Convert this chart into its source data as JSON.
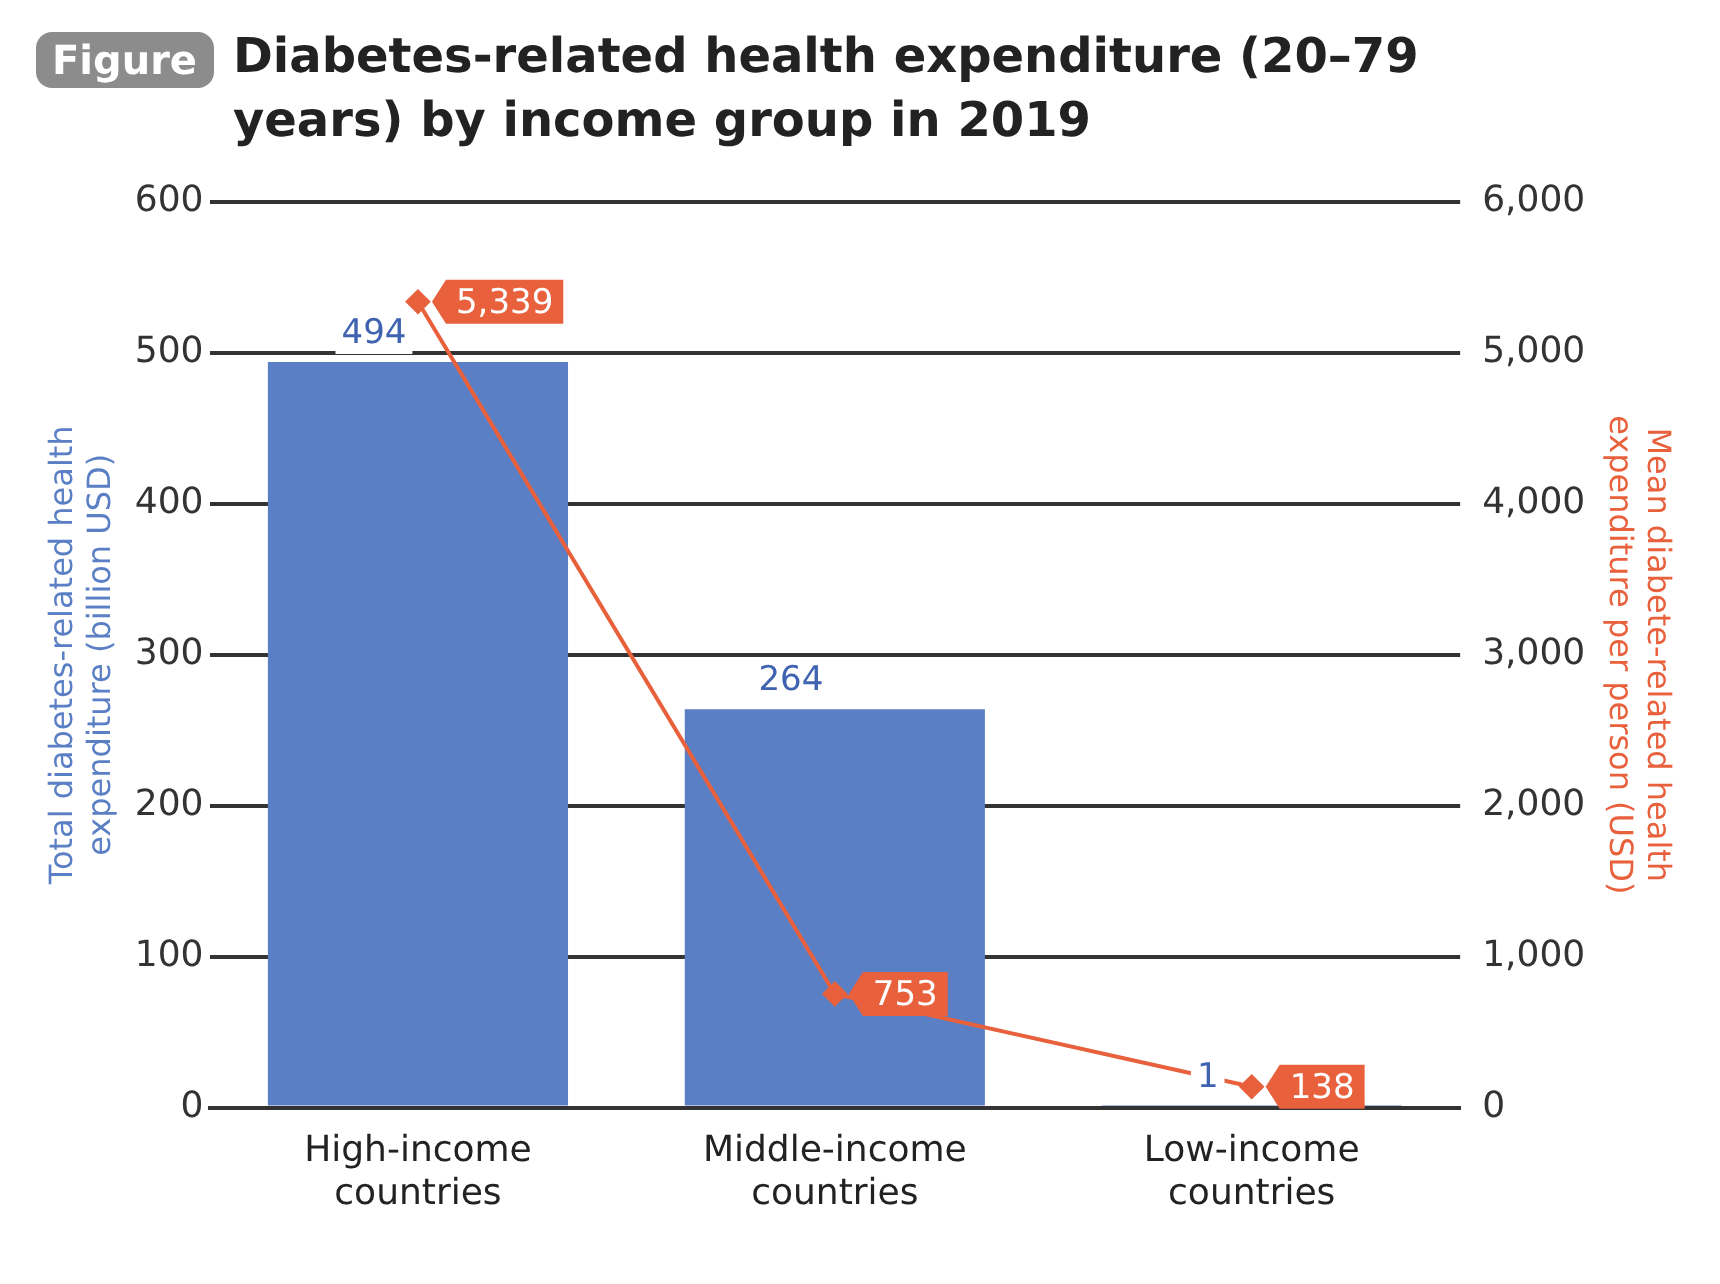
{
  "chart_data": {
    "type": "bar",
    "title": "Diabetes-related health expenditure (20–79 years) by income group in 2019",
    "annotations": [
      "Figure"
    ],
    "categories": [
      "High-income countries",
      "Middle-income countries",
      "Low-income countries"
    ],
    "ylabel": "Total diabetes-related health expenditure (billion USD)",
    "y2label": "Mean diabete-related health expenditure per person (USD)",
    "series": [
      {
        "type": "bar",
        "color": "#5b7fc4",
        "values": [
          494,
          264,
          1
        ],
        "value_labels": [
          "494",
          "264",
          "1"
        ]
      },
      {
        "type": "line",
        "axis": "y2",
        "color": "#e8603c",
        "values": [
          5339,
          753,
          138
        ],
        "value_labels": [
          "5,339",
          "753",
          "138"
        ],
        "marker": "diamond"
      }
    ],
    "ylim": [
      0,
      600
    ],
    "yticks": [
      0,
      100,
      200,
      300,
      400,
      500,
      600
    ],
    "y2lim": [
      0,
      6000
    ],
    "y2ticks": [
      {
        "value": 0,
        "label": "0"
      },
      {
        "value": 1000,
        "label": "1,000"
      },
      {
        "value": 2000,
        "label": "2,000"
      },
      {
        "value": 3000,
        "label": "3,000"
      },
      {
        "value": 4000,
        "label": "4,000"
      },
      {
        "value": 5000,
        "label": "5,000"
      },
      {
        "value": 6000,
        "label": "6,000"
      }
    ],
    "grid": "y",
    "legend": false
  }
}
